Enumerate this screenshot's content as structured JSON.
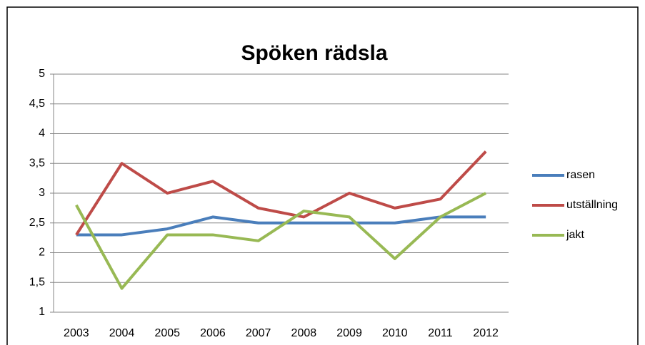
{
  "chart_data": {
    "type": "line",
    "title": "Spöken rädsla",
    "categories": [
      "2003",
      "2004",
      "2005",
      "2006",
      "2007",
      "2008",
      "2009",
      "2010",
      "2011",
      "2012"
    ],
    "series": [
      {
        "name": "rasen",
        "color": "#4a7ebb",
        "values": [
          2.3,
          2.3,
          2.4,
          2.6,
          2.5,
          2.5,
          2.5,
          2.5,
          2.6,
          2.6
        ]
      },
      {
        "name": "utställning",
        "color": "#be4b48",
        "values": [
          2.3,
          3.5,
          3.0,
          3.2,
          2.75,
          2.6,
          3.0,
          2.75,
          2.9,
          3.7
        ]
      },
      {
        "name": "jakt",
        "color": "#98b954",
        "values": [
          2.8,
          1.4,
          2.3,
          2.3,
          2.2,
          2.7,
          2.6,
          1.9,
          2.6,
          3.0
        ]
      }
    ],
    "ylim": [
      1,
      5
    ],
    "yticks": [
      1,
      {
        "value": 1.5,
        "label": "1,5"
      },
      2,
      {
        "value": 2.5,
        "label": "2,5"
      },
      3,
      {
        "value": 3.5,
        "label": "3,5"
      },
      4,
      {
        "value": 4.5,
        "label": "4,5"
      },
      5
    ],
    "grid": true,
    "legend": "right"
  }
}
